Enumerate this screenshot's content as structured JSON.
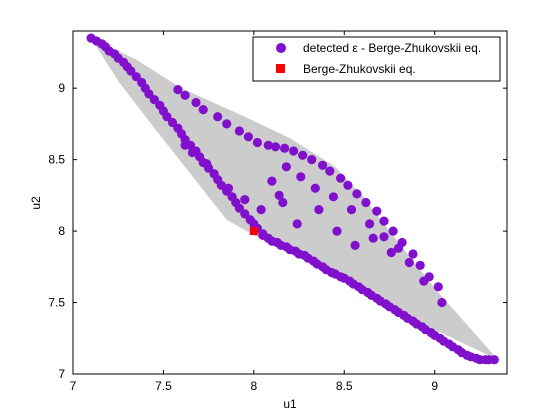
{
  "chart_data": {
    "type": "scatter",
    "title": "",
    "xlabel": "u1",
    "ylabel": "u2",
    "xlim": [
      7,
      9.4
    ],
    "ylim": [
      7,
      9.4
    ],
    "xticks": [
      7,
      7.5,
      8,
      8.5,
      9
    ],
    "yticks": [
      7,
      7.5,
      8,
      8.5,
      9
    ],
    "xtick_labels": [
      "7",
      "7.5",
      "8",
      "8.5",
      "9"
    ],
    "ytick_labels": [
      "7",
      "7.5",
      "8",
      "8.5",
      "9"
    ],
    "grid": false,
    "legend_position": "top-right",
    "colors": {
      "detected": "#8010cc",
      "equilibrium": "#ff0000",
      "region": "#cccccc"
    },
    "region": {
      "x": [
        7.1,
        7.35,
        7.6,
        7.95,
        8.2,
        8.45,
        8.6,
        8.75,
        9.0,
        9.35,
        9.1,
        8.85,
        8.6,
        8.35,
        8.1,
        7.85,
        7.65,
        7.45,
        7.25
      ],
      "y": [
        9.35,
        9.2,
        9.0,
        8.8,
        8.65,
        8.45,
        8.25,
        8.0,
        7.6,
        7.1,
        7.25,
        7.4,
        7.58,
        7.78,
        7.9,
        8.08,
        8.4,
        8.72,
        9.05
      ]
    },
    "series": [
      {
        "name": "detected ε - Berge-Zhukovskii eq.",
        "marker": "circle",
        "x": [
          7.1,
          7.13,
          7.16,
          7.18,
          7.2,
          7.23,
          7.25,
          7.28,
          7.3,
          7.32,
          7.35,
          7.38,
          7.4,
          7.42,
          7.45,
          7.48,
          7.5,
          7.52,
          7.55,
          7.58,
          7.6,
          7.62,
          7.65,
          7.68,
          7.7,
          7.72,
          7.75,
          7.78,
          7.8,
          7.82,
          7.85,
          7.88,
          7.9,
          7.92,
          7.95,
          7.98,
          8.0,
          8.02,
          8.05,
          8.08,
          8.1,
          8.13,
          8.15,
          8.18,
          8.2,
          8.23,
          8.25,
          8.28,
          8.3,
          8.33,
          8.35,
          8.38,
          8.4,
          8.43,
          8.45,
          8.48,
          8.5,
          8.53,
          8.55,
          8.58,
          8.6,
          8.63,
          8.65,
          8.68,
          8.7,
          8.73,
          8.75,
          8.78,
          8.8,
          8.83,
          8.85,
          8.88,
          8.9,
          8.93,
          8.95,
          8.98,
          9.0,
          9.03,
          9.05,
          9.08,
          9.1,
          9.13,
          9.15,
          9.18,
          9.2,
          9.23,
          9.25,
          9.28,
          9.3,
          9.33,
          7.58,
          7.62,
          7.68,
          7.72,
          7.8,
          7.85,
          7.92,
          7.97,
          8.02,
          8.08,
          8.12,
          8.17,
          8.22,
          8.27,
          8.32,
          8.38,
          8.42,
          8.48,
          8.52,
          8.57,
          8.62,
          8.68,
          8.72,
          8.77,
          8.82,
          8.88,
          8.92,
          8.97,
          9.02,
          7.62,
          7.66,
          7.74,
          7.78,
          7.86,
          7.95,
          8.04,
          8.1,
          8.18,
          8.26,
          8.34,
          8.44,
          8.54,
          8.64,
          8.72,
          8.8,
          8.86,
          8.94,
          9.04,
          8.16,
          8.36,
          8.46,
          8.56,
          8.66,
          8.76,
          8.24,
          8.14,
          8.05
        ],
        "y": [
          9.35,
          9.33,
          9.31,
          9.29,
          9.26,
          9.24,
          9.21,
          9.18,
          9.15,
          9.12,
          9.08,
          9.04,
          9.0,
          8.96,
          8.92,
          8.88,
          8.84,
          8.8,
          8.76,
          8.72,
          8.68,
          8.64,
          8.6,
          8.56,
          8.52,
          8.48,
          8.44,
          8.4,
          8.36,
          8.32,
          8.28,
          8.24,
          8.2,
          8.16,
          8.12,
          8.08,
          8.05,
          8.02,
          7.98,
          7.95,
          7.93,
          7.92,
          7.9,
          7.89,
          7.87,
          7.86,
          7.84,
          7.83,
          7.81,
          7.79,
          7.77,
          7.75,
          7.73,
          7.71,
          7.7,
          7.68,
          7.67,
          7.65,
          7.63,
          7.61,
          7.59,
          7.57,
          7.55,
          7.53,
          7.51,
          7.49,
          7.47,
          7.45,
          7.43,
          7.41,
          7.39,
          7.37,
          7.35,
          7.33,
          7.31,
          7.29,
          7.27,
          7.25,
          7.23,
          7.21,
          7.19,
          7.17,
          7.15,
          7.13,
          7.12,
          7.11,
          7.1,
          7.1,
          7.1,
          7.1,
          8.99,
          8.95,
          8.9,
          8.85,
          8.8,
          8.75,
          8.7,
          8.66,
          8.62,
          8.6,
          8.59,
          8.58,
          8.56,
          8.53,
          8.5,
          8.46,
          8.42,
          8.37,
          8.32,
          8.26,
          8.2,
          8.14,
          8.07,
          8.0,
          7.92,
          7.84,
          7.76,
          7.68,
          7.61,
          8.6,
          8.55,
          8.47,
          8.4,
          8.3,
          8.22,
          8.15,
          8.35,
          8.45,
          8.38,
          8.3,
          8.24,
          8.15,
          8.05,
          7.96,
          7.88,
          7.78,
          7.65,
          7.5,
          8.2,
          8.15,
          8.0,
          7.9,
          7.95,
          7.85,
          8.05,
          8.25,
          7.97
        ]
      },
      {
        "name": "Berge-Zhukovskii eq.",
        "marker": "square",
        "x": [
          8.0
        ],
        "y": [
          8.0
        ]
      }
    ]
  }
}
